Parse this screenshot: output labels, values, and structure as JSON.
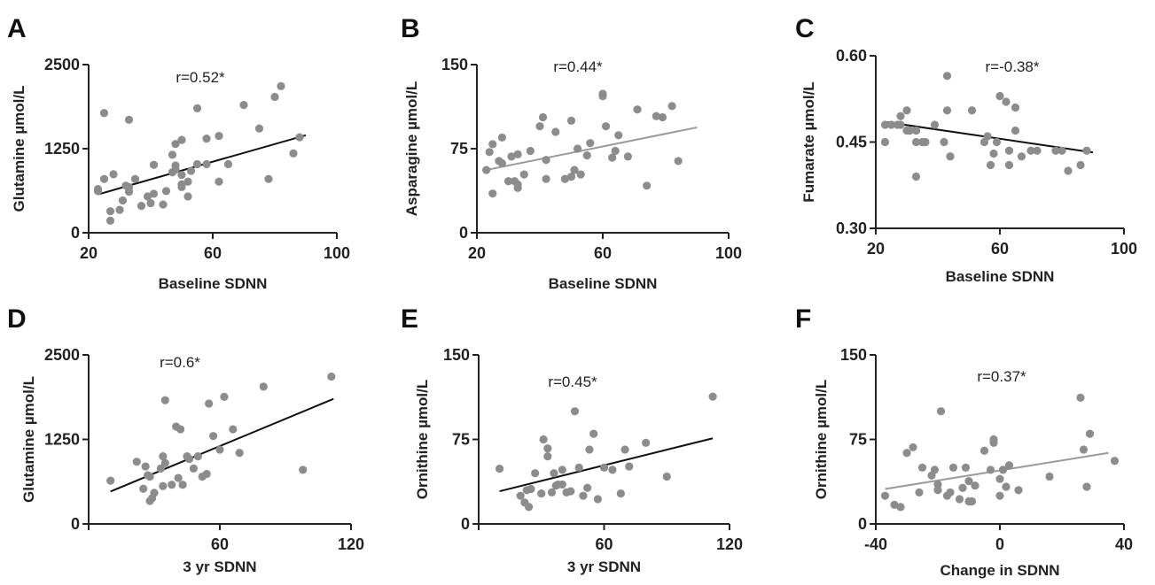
{
  "chart_data": [
    {
      "type": "scatter",
      "panel": "A",
      "xlabel": "Baseline SDNN",
      "ylabel": "Glutamine µmol/L",
      "annotation": "r=0.52*",
      "xlim": [
        20,
        100
      ],
      "ylim": [
        0,
        2500
      ],
      "xticks": [
        20,
        60,
        100
      ],
      "yticks": [
        0,
        1250,
        2500
      ],
      "tick_labels_x": [
        "20",
        "60",
        "100"
      ],
      "tick_labels_y": [
        "0",
        "1250",
        "2500"
      ],
      "point_color": "#8c8c8c",
      "line_color": "#111111",
      "fit": {
        "x": [
          23,
          90
        ],
        "y": [
          570,
          1450
        ]
      },
      "points": [
        [
          23,
          620
        ],
        [
          23,
          650
        ],
        [
          25,
          800
        ],
        [
          25,
          1780
        ],
        [
          27,
          180
        ],
        [
          27,
          320
        ],
        [
          28,
          870
        ],
        [
          30,
          340
        ],
        [
          31,
          480
        ],
        [
          32,
          700
        ],
        [
          33,
          610
        ],
        [
          33,
          1680
        ],
        [
          33,
          680
        ],
        [
          35,
          800
        ],
        [
          37,
          400
        ],
        [
          39,
          540
        ],
        [
          40,
          440
        ],
        [
          41,
          580
        ],
        [
          41,
          1010
        ],
        [
          44,
          420
        ],
        [
          45,
          620
        ],
        [
          47,
          1160
        ],
        [
          47,
          900
        ],
        [
          48,
          1000
        ],
        [
          48,
          1320
        ],
        [
          48,
          940
        ],
        [
          50,
          680
        ],
        [
          50,
          1380
        ],
        [
          50,
          720
        ],
        [
          50,
          860
        ],
        [
          52,
          540
        ],
        [
          52,
          760
        ],
        [
          53,
          920
        ],
        [
          55,
          1020
        ],
        [
          55,
          1850
        ],
        [
          58,
          1020
        ],
        [
          58,
          1400
        ],
        [
          62,
          760
        ],
        [
          62,
          1440
        ],
        [
          65,
          1020
        ],
        [
          70,
          1900
        ],
        [
          75,
          1550
        ],
        [
          78,
          800
        ],
        [
          80,
          2020
        ],
        [
          82,
          2180
        ],
        [
          86,
          1180
        ],
        [
          88,
          1420
        ]
      ]
    },
    {
      "type": "scatter",
      "panel": "B",
      "xlabel": "Baseline SDNN",
      "ylabel": "Asparagine µmol/L",
      "annotation": "r=0.44*",
      "xlim": [
        20,
        100
      ],
      "ylim": [
        0,
        150
      ],
      "xticks": [
        20,
        60,
        100
      ],
      "yticks": [
        0,
        75,
        150
      ],
      "tick_labels_x": [
        "20",
        "60",
        "100"
      ],
      "tick_labels_y": [
        "0",
        "75",
        "150"
      ],
      "point_color": "#8c8c8c",
      "line_color": "#9a9a9a",
      "fit": {
        "x": [
          23,
          90
        ],
        "y": [
          56,
          94
        ]
      },
      "points": [
        [
          23,
          56
        ],
        [
          24,
          72
        ],
        [
          25,
          35
        ],
        [
          25,
          79
        ],
        [
          27,
          64
        ],
        [
          28,
          62
        ],
        [
          28,
          85
        ],
        [
          30,
          46
        ],
        [
          31,
          68
        ],
        [
          32,
          46
        ],
        [
          33,
          43
        ],
        [
          33,
          70
        ],
        [
          33,
          40
        ],
        [
          35,
          52
        ],
        [
          37,
          73
        ],
        [
          40,
          95
        ],
        [
          41,
          103
        ],
        [
          42,
          65
        ],
        [
          42,
          48
        ],
        [
          45,
          90
        ],
        [
          48,
          48
        ],
        [
          50,
          50
        ],
        [
          50,
          100
        ],
        [
          51,
          56
        ],
        [
          52,
          75
        ],
        [
          53,
          52
        ],
        [
          55,
          69
        ],
        [
          56,
          80
        ],
        [
          60,
          124
        ],
        [
          60,
          122
        ],
        [
          61,
          95
        ],
        [
          63,
          67
        ],
        [
          64,
          73
        ],
        [
          65,
          87
        ],
        [
          68,
          68
        ],
        [
          71,
          110
        ],
        [
          74,
          42
        ],
        [
          77,
          104
        ],
        [
          79,
          103
        ],
        [
          82,
          113
        ],
        [
          84,
          64
        ]
      ]
    },
    {
      "type": "scatter",
      "panel": "C",
      "xlabel": "Baseline SDNN",
      "ylabel": "Fumarate µmol/L",
      "annotation": "r=-0.38*",
      "xlim": [
        20,
        100
      ],
      "ylim": [
        0.3,
        0.6
      ],
      "xticks": [
        20,
        60,
        100
      ],
      "yticks": [
        0.3,
        0.45,
        0.6
      ],
      "tick_labels_x": [
        "20",
        "60",
        "100"
      ],
      "tick_labels_y": [
        "0.30",
        "0.45",
        "0.60"
      ],
      "point_color": "#8c8c8c",
      "line_color": "#111111",
      "fit": {
        "x": [
          23,
          90
        ],
        "y": [
          0.485,
          0.432
        ]
      },
      "points": [
        [
          23,
          0.48
        ],
        [
          23,
          0.45
        ],
        [
          25,
          0.48
        ],
        [
          27,
          0.48
        ],
        [
          28,
          0.495
        ],
        [
          28,
          0.48
        ],
        [
          30,
          0.505
        ],
        [
          30,
          0.47
        ],
        [
          31,
          0.47
        ],
        [
          33,
          0.47
        ],
        [
          33,
          0.47
        ],
        [
          33,
          0.45
        ],
        [
          33,
          0.39
        ],
        [
          35,
          0.45
        ],
        [
          36,
          0.45
        ],
        [
          39,
          0.48
        ],
        [
          42,
          0.45
        ],
        [
          43,
          0.565
        ],
        [
          43,
          0.505
        ],
        [
          44,
          0.425
        ],
        [
          51,
          0.505
        ],
        [
          55,
          0.45
        ],
        [
          56,
          0.46
        ],
        [
          57,
          0.41
        ],
        [
          58,
          0.43
        ],
        [
          59,
          0.45
        ],
        [
          60,
          0.53
        ],
        [
          62,
          0.52
        ],
        [
          63,
          0.41
        ],
        [
          63,
          0.435
        ],
        [
          65,
          0.51
        ],
        [
          65,
          0.47
        ],
        [
          67,
          0.425
        ],
        [
          70,
          0.435
        ],
        [
          72,
          0.435
        ],
        [
          78,
          0.435
        ],
        [
          80,
          0.435
        ],
        [
          82,
          0.4
        ],
        [
          86,
          0.41
        ],
        [
          88,
          0.435
        ]
      ]
    },
    {
      "type": "scatter",
      "panel": "D",
      "xlabel": "3 yr SDNN",
      "ylabel": "Glutamine µmol/L",
      "annotation": "r=0.6*",
      "xlim": [
        0,
        120
      ],
      "ylim": [
        0,
        2500
      ],
      "xticks": [
        0,
        60,
        120
      ],
      "tick_labels_x": [
        "",
        "60",
        "120"
      ],
      "yticks": [
        0,
        1250,
        2500
      ],
      "tick_labels_y": [
        "0",
        "1250",
        "2500"
      ],
      "point_color": "#8c8c8c",
      "line_color": "#111111",
      "fit": {
        "x": [
          10,
          112
        ],
        "y": [
          480,
          1850
        ]
      },
      "points": [
        [
          10,
          640
        ],
        [
          22,
          920
        ],
        [
          25,
          520
        ],
        [
          26,
          850
        ],
        [
          27,
          720
        ],
        [
          28,
          340
        ],
        [
          28,
          700
        ],
        [
          29,
          380
        ],
        [
          30,
          460
        ],
        [
          33,
          820
        ],
        [
          34,
          560
        ],
        [
          34,
          1000
        ],
        [
          35,
          1830
        ],
        [
          35,
          900
        ],
        [
          38,
          580
        ],
        [
          40,
          1440
        ],
        [
          41,
          680
        ],
        [
          42,
          1400
        ],
        [
          43,
          580
        ],
        [
          45,
          1000
        ],
        [
          46,
          960
        ],
        [
          48,
          820
        ],
        [
          50,
          1000
        ],
        [
          52,
          700
        ],
        [
          54,
          740
        ],
        [
          55,
          1780
        ],
        [
          57,
          1300
        ],
        [
          60,
          1100
        ],
        [
          62,
          1880
        ],
        [
          66,
          1400
        ],
        [
          69,
          1050
        ],
        [
          80,
          2030
        ],
        [
          98,
          800
        ],
        [
          111,
          2180
        ]
      ]
    },
    {
      "type": "scatter",
      "panel": "E",
      "xlabel": "3 yr SDNN",
      "ylabel": "Ornithine µmol/L",
      "annotation": "r=0.45*",
      "xlim": [
        0,
        120
      ],
      "ylim": [
        0,
        150
      ],
      "xticks": [
        0,
        60,
        120
      ],
      "tick_labels_x": [
        "",
        "60",
        "120"
      ],
      "yticks": [
        0,
        75,
        150
      ],
      "tick_labels_y": [
        "0",
        "75",
        "150"
      ],
      "point_color": "#8c8c8c",
      "line_color": "#111111",
      "fit": {
        "x": [
          10,
          112
        ],
        "y": [
          29,
          76
        ]
      },
      "points": [
        [
          10,
          49
        ],
        [
          20,
          25
        ],
        [
          22,
          19
        ],
        [
          23,
          30
        ],
        [
          24,
          15
        ],
        [
          25,
          31
        ],
        [
          27,
          45
        ],
        [
          30,
          27
        ],
        [
          31,
          75
        ],
        [
          33,
          67
        ],
        [
          33,
          60
        ],
        [
          35,
          28
        ],
        [
          36,
          45
        ],
        [
          37,
          34
        ],
        [
          38,
          35
        ],
        [
          40,
          35
        ],
        [
          40,
          48
        ],
        [
          42,
          28
        ],
        [
          44,
          29
        ],
        [
          46,
          100
        ],
        [
          48,
          50
        ],
        [
          50,
          25
        ],
        [
          52,
          32
        ],
        [
          53,
          66
        ],
        [
          55,
          80
        ],
        [
          57,
          22
        ],
        [
          60,
          50
        ],
        [
          64,
          48
        ],
        [
          68,
          27
        ],
        [
          70,
          66
        ],
        [
          72,
          51
        ],
        [
          80,
          72
        ],
        [
          90,
          42
        ],
        [
          112,
          113
        ]
      ]
    },
    {
      "type": "scatter",
      "panel": "F",
      "xlabel": "Change in SDNN",
      "ylabel": "Ornithine µmol/L",
      "annotation": "r=0.37*",
      "xlim": [
        -40,
        40
      ],
      "ylim": [
        0,
        150
      ],
      "xticks": [
        -40,
        0,
        40
      ],
      "yticks": [
        0,
        75,
        150
      ],
      "tick_labels_x": [
        "-40",
        "0",
        "40"
      ],
      "tick_labels_y": [
        "0",
        "75",
        "150"
      ],
      "point_color": "#8c8c8c",
      "line_color": "#9a9a9a",
      "fit": {
        "x": [
          -37,
          35
        ],
        "y": [
          31,
          63
        ]
      },
      "points": [
        [
          -37,
          25
        ],
        [
          -34,
          17
        ],
        [
          -32,
          15
        ],
        [
          -30,
          63
        ],
        [
          -28,
          68
        ],
        [
          -26,
          28
        ],
        [
          -25,
          50
        ],
        [
          -22,
          43
        ],
        [
          -21,
          48
        ],
        [
          -20,
          30
        ],
        [
          -20,
          35
        ],
        [
          -19,
          100
        ],
        [
          -17,
          25
        ],
        [
          -16,
          28
        ],
        [
          -15,
          50
        ],
        [
          -13,
          22
        ],
        [
          -12,
          32
        ],
        [
          -11,
          50
        ],
        [
          -10,
          20
        ],
        [
          -10,
          38
        ],
        [
          -9,
          20
        ],
        [
          -8,
          34
        ],
        [
          -5,
          65
        ],
        [
          -3,
          48
        ],
        [
          -2,
          75
        ],
        [
          -2,
          72
        ],
        [
          0,
          40
        ],
        [
          0,
          25
        ],
        [
          1,
          48
        ],
        [
          2,
          33
        ],
        [
          3,
          52
        ],
        [
          6,
          30
        ],
        [
          16,
          42
        ],
        [
          26,
          112
        ],
        [
          27,
          66
        ],
        [
          28,
          33
        ],
        [
          29,
          80
        ],
        [
          37,
          56
        ]
      ]
    }
  ]
}
